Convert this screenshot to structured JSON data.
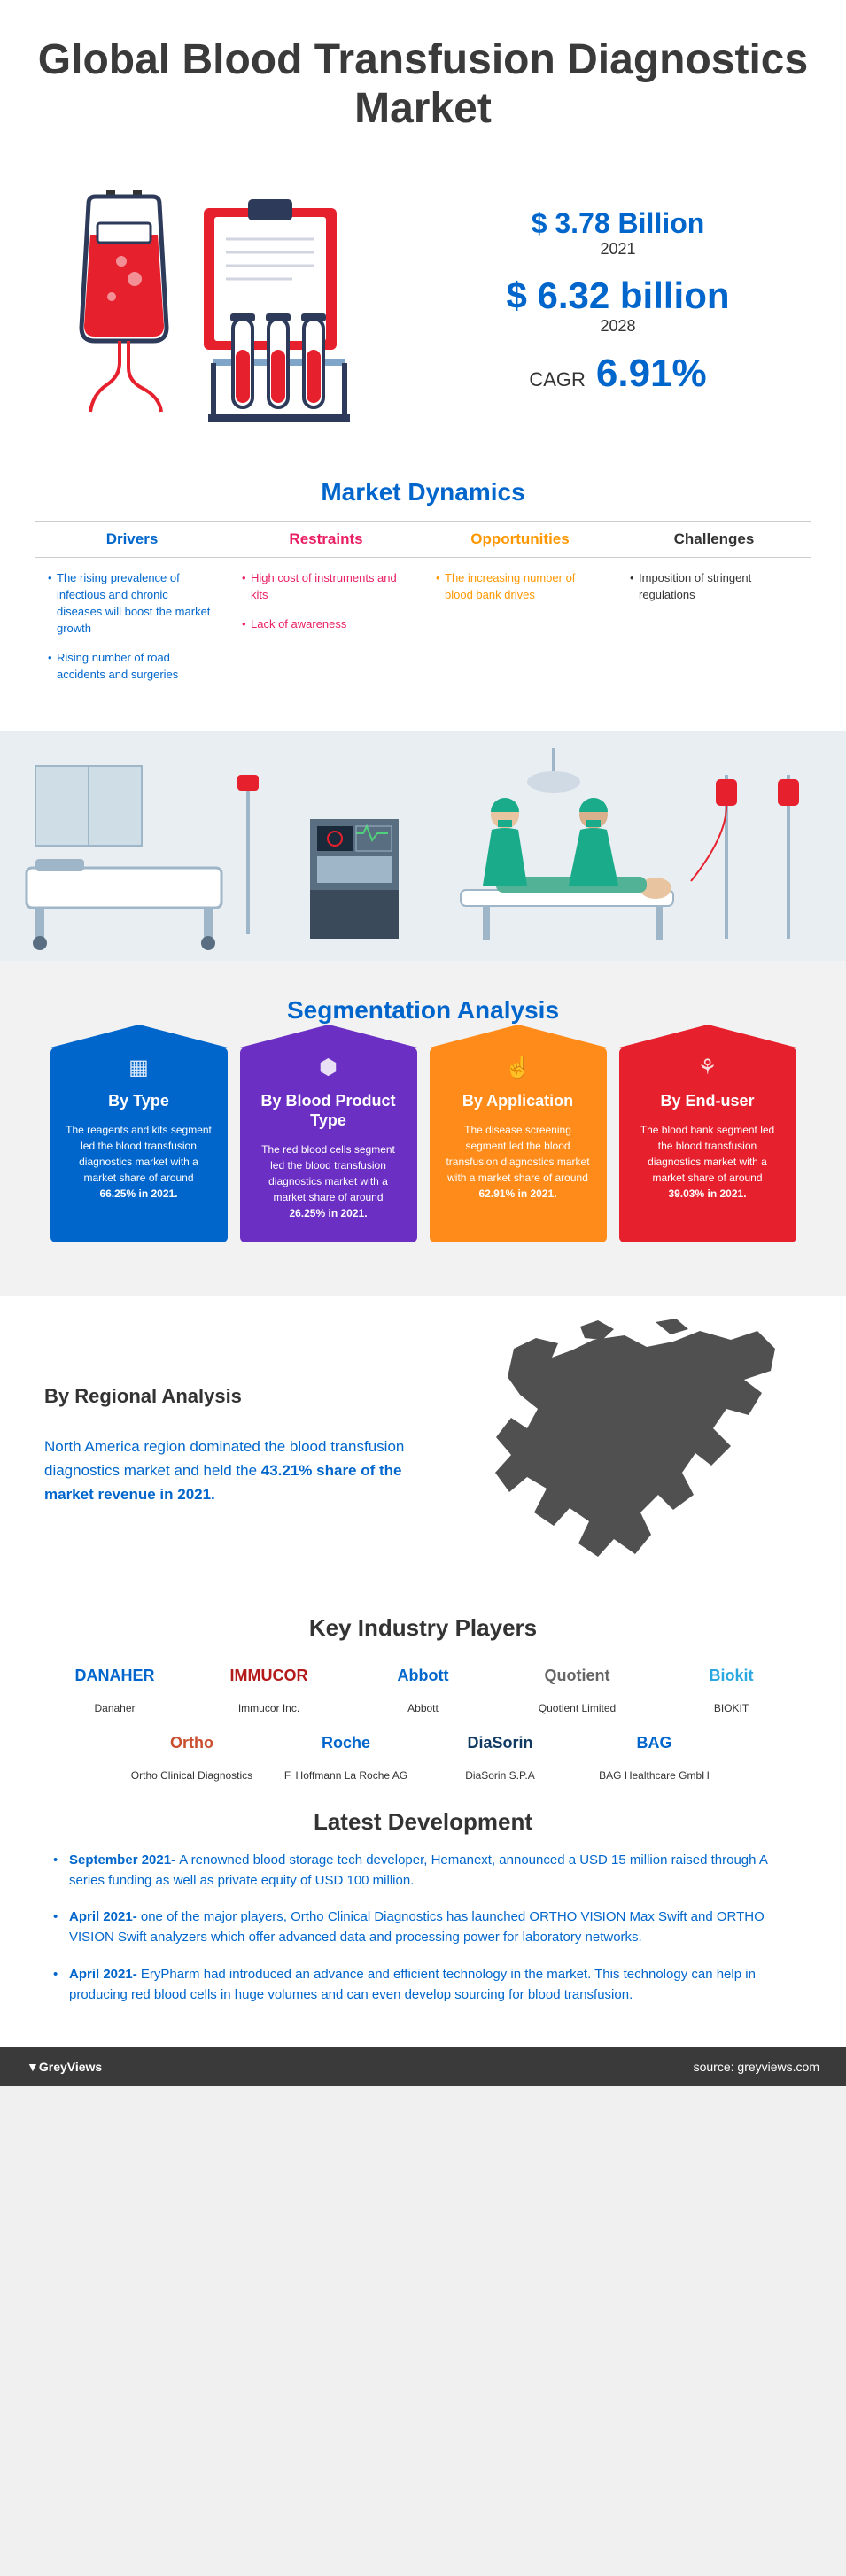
{
  "header": {
    "title": "Global Blood Transfusion Diagnostics Market"
  },
  "hero": {
    "stat1_value": "$ 3.78 Billion",
    "stat1_year": "2021",
    "stat2_value": "$ 6.32 billion",
    "stat2_year": "2028",
    "cagr_label": "CAGR",
    "cagr_value": "6.91%"
  },
  "dynamics": {
    "title": "Market Dynamics",
    "cols": [
      {
        "head": "Drivers",
        "color": "#0066cc",
        "items": [
          "The rising prevalence of infectious and chronic diseases will boost the market growth",
          "Rising number of road accidents and surgeries"
        ]
      },
      {
        "head": "Restraints",
        "color": "#e91e63",
        "items": [
          "High cost of instruments and kits",
          "Lack of awareness"
        ]
      },
      {
        "head": "Opportunities",
        "color": "#ff9800",
        "items": [
          "The increasing number of blood bank drives"
        ]
      },
      {
        "head": "Challenges",
        "color": "#333333",
        "items": [
          "Imposition of stringent regulations"
        ]
      }
    ]
  },
  "segmentation": {
    "title": "Segmentation Analysis",
    "cards": [
      {
        "title": "By Type",
        "color": "#0066cc",
        "text": "The reagents and kits segment led the blood transfusion diagnostics market with a market share of around 66.25% in 2021."
      },
      {
        "title": "By Blood Product Type",
        "color": "#6b2fc4",
        "text": "The red blood cells segment led the blood transfusion diagnostics market with a market share of around 26.25% in 2021."
      },
      {
        "title": "By Application",
        "color": "#ff8c1a",
        "text": "The disease screening segment led the blood transfusion diagnostics market with a market share of around 62.91% in 2021."
      },
      {
        "title": "By End-user",
        "color": "#e6202c",
        "text": "The blood bank segment led the blood transfusion diagnostics market with a market share of around 39.03% in 2021."
      }
    ]
  },
  "regional": {
    "title": "By Regional Analysis",
    "text_pre": "North America region dominated the blood transfusion diagnostics market and held the ",
    "text_bold": "43.21% share of the market revenue in 2021.",
    "map_color": "#505050"
  },
  "players": {
    "title": "Key Industry Players",
    "list": [
      {
        "logo": "DANAHER",
        "color": "#0066cc",
        "name": "Danaher"
      },
      {
        "logo": "IMMUCOR",
        "color": "#b31b1b",
        "name": "Immucor Inc."
      },
      {
        "logo": "Abbott",
        "color": "#0066cc",
        "name": "Abbott"
      },
      {
        "logo": "Quotient",
        "color": "#666",
        "name": "Quotient Limited"
      },
      {
        "logo": "Biokit",
        "color": "#2aa8e0",
        "name": "BIOKIT"
      },
      {
        "logo": "Ortho",
        "color": "#c94e2e",
        "name": "Ortho Clinical Diagnostics"
      },
      {
        "logo": "Roche",
        "color": "#0066cc",
        "name": "F. Hoffmann La Roche AG"
      },
      {
        "logo": "DiaSorin",
        "color": "#113a63",
        "name": "DiaSorin S.P.A"
      },
      {
        "logo": "BAG",
        "color": "#0066cc",
        "name": "BAG Healthcare GmbH"
      }
    ]
  },
  "devs": {
    "title": "Latest Development",
    "items": [
      {
        "date": "September 2021- ",
        "text": "A renowned blood storage tech developer, Hemanext, announced a USD 15 million raised through A series funding as well as private equity of USD 100 million."
      },
      {
        "date": "April 2021- ",
        "text": "one of the major players, Ortho Clinical Diagnostics has launched ORTHO VISION Max Swift and ORTHO VISION Swift analyzers which offer advanced data and processing power for laboratory networks."
      },
      {
        "date": "April 2021- ",
        "text": "EryPharm had introduced an advance and efficient technology in the market. This technology can help in producing red blood cells in huge volumes and can even develop sourcing for blood transfusion."
      }
    ]
  },
  "footer": {
    "logo": "GreyViews",
    "source": "source:  greyviews.com"
  },
  "colors": {
    "blue": "#0066cc",
    "heading": "#3a3a3a",
    "hospital_bg": "#e8eef2",
    "seg_bg": "#f2f2f2",
    "footer_bg": "#3a3a3a"
  }
}
